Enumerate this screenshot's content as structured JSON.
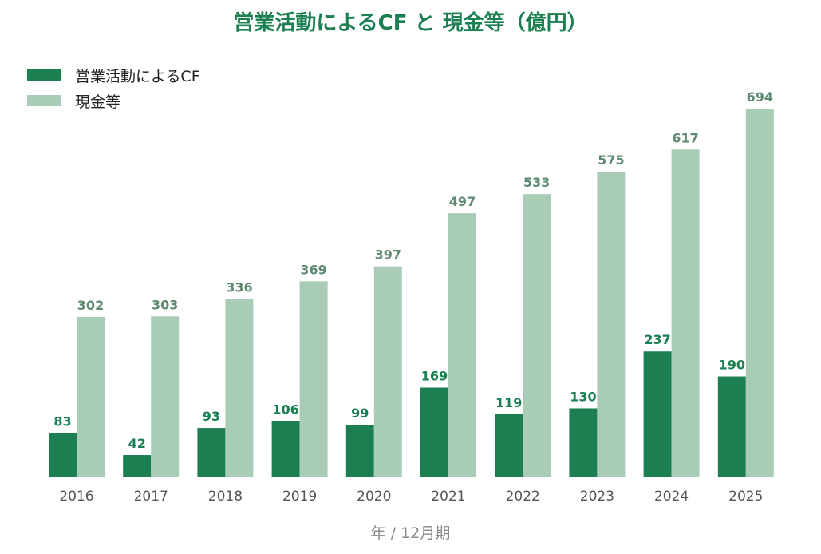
{
  "chart_data": {
    "type": "bar",
    "title": "営業活動によるCF と 現金等（億円）",
    "xlabel": "年 / 12月期",
    "ylabel": "",
    "categories": [
      "2016",
      "2017",
      "2018",
      "2019",
      "2020",
      "2021",
      "2022",
      "2023",
      "2024",
      "2025"
    ],
    "series": [
      {
        "name": "営業活動によるCF",
        "color": "#1b7f52",
        "label_color": "#1b7f52",
        "values": [
          83,
          42,
          93,
          106,
          99,
          169,
          119,
          130,
          237,
          190
        ]
      },
      {
        "name": "現金等",
        "color": "#a8ccb6",
        "label_color": "#5f8a72",
        "values": [
          302,
          303,
          336,
          369,
          397,
          497,
          533,
          575,
          617,
          694
        ]
      }
    ],
    "ylim": [
      0,
      694
    ],
    "grid": false,
    "legend_position": "top-left"
  }
}
